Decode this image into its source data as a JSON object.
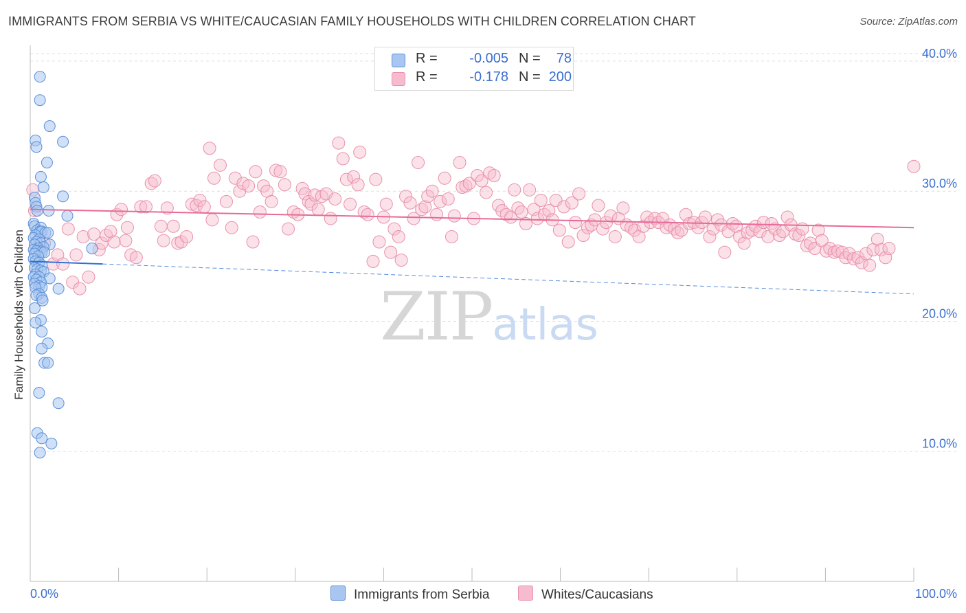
{
  "title": "IMMIGRANTS FROM SERBIA VS WHITE/CAUCASIAN FAMILY HOUSEHOLDS WITH CHILDREN CORRELATION CHART",
  "source": "Source: ZipAtlas.com",
  "watermark": {
    "zip": "ZIP",
    "atlas": "atlas"
  },
  "colors": {
    "blue_fill": "#a8c6f0",
    "blue_stroke": "#5b8fd8",
    "blue_line": "#2e6fd6",
    "pink_fill": "#f6bccd",
    "pink_stroke": "#e890ad",
    "pink_line": "#e66b98",
    "accent_text": "#3a6fd0",
    "grid": "#dddddd"
  },
  "legend_top": {
    "rows": [
      {
        "r_label": "R =",
        "r_value": "-0.005",
        "n_label": "N =",
        "n_value": "78"
      },
      {
        "r_label": "R =",
        "r_value": "-0.178",
        "n_label": "N =",
        "n_value": "200"
      }
    ]
  },
  "legend_bottom": {
    "series1": "Immigrants from Serbia",
    "series2": "Whites/Caucasians"
  },
  "chart_data": {
    "type": "scatter",
    "title": "IMMIGRANTS FROM SERBIA VS WHITE/CAUCASIAN FAMILY HOUSEHOLDS WITH CHILDREN CORRELATION CHART",
    "xlabel": "",
    "ylabel": "Family Households with Children",
    "xlim": [
      0,
      100
    ],
    "ylim": [
      0,
      41
    ],
    "x_tick_labels": [
      "0.0%",
      "100.0%"
    ],
    "y_ticks": [
      10,
      20,
      30,
      40
    ],
    "y_tick_labels": [
      "10.0%",
      "20.0%",
      "30.0%",
      "40.0%"
    ],
    "grid": true,
    "legend_position": "bottom-center",
    "series": [
      {
        "name": "Immigrants from Serbia",
        "R": -0.005,
        "N": 78,
        "trend": {
          "x": [
            0,
            8.2
          ],
          "y": [
            24.6,
            24.4
          ],
          "dashed_extension": {
            "x": [
              8.2,
              100
            ],
            "y": [
              24.4,
              22.1
            ]
          }
        },
        "points": [
          [
            1.1,
            38.8
          ],
          [
            1.1,
            37.0
          ],
          [
            2.2,
            35.0
          ],
          [
            0.6,
            33.9
          ],
          [
            3.7,
            33.8
          ],
          [
            0.7,
            33.4
          ],
          [
            1.9,
            32.2
          ],
          [
            1.2,
            31.1
          ],
          [
            1.5,
            30.3
          ],
          [
            3.7,
            29.6
          ],
          [
            0.5,
            29.5
          ],
          [
            0.6,
            29.1
          ],
          [
            0.7,
            28.8
          ],
          [
            0.8,
            28.5
          ],
          [
            2.1,
            28.5
          ],
          [
            4.2,
            28.1
          ],
          [
            0.4,
            27.5
          ],
          [
            0.5,
            27.3
          ],
          [
            1.2,
            27.2
          ],
          [
            0.8,
            27.0
          ],
          [
            1.1,
            26.9
          ],
          [
            1.3,
            26.9
          ],
          [
            1.7,
            26.8
          ],
          [
            2.0,
            26.8
          ],
          [
            0.6,
            26.6
          ],
          [
            0.4,
            26.4
          ],
          [
            1.0,
            26.3
          ],
          [
            0.7,
            26.1
          ],
          [
            1.2,
            26.0
          ],
          [
            0.5,
            25.9
          ],
          [
            2.2,
            25.9
          ],
          [
            1.5,
            25.7
          ],
          [
            0.9,
            25.6
          ],
          [
            0.4,
            25.5
          ],
          [
            7.0,
            25.6
          ],
          [
            1.1,
            25.4
          ],
          [
            0.7,
            25.4
          ],
          [
            1.3,
            25.3
          ],
          [
            1.6,
            25.3
          ],
          [
            0.5,
            25.2
          ],
          [
            0.9,
            25.0
          ],
          [
            0.4,
            24.8
          ],
          [
            0.6,
            24.6
          ],
          [
            1.0,
            24.5
          ],
          [
            1.3,
            24.3
          ],
          [
            0.5,
            24.1
          ],
          [
            0.8,
            24.0
          ],
          [
            1.2,
            23.9
          ],
          [
            1.5,
            23.8
          ],
          [
            0.6,
            23.6
          ],
          [
            0.4,
            23.4
          ],
          [
            1.0,
            23.4
          ],
          [
            2.2,
            23.3
          ],
          [
            0.7,
            23.2
          ],
          [
            1.2,
            23.0
          ],
          [
            0.5,
            22.9
          ],
          [
            1.0,
            22.7
          ],
          [
            1.3,
            22.6
          ],
          [
            0.6,
            22.6
          ],
          [
            3.2,
            22.5
          ],
          [
            1.0,
            22.1
          ],
          [
            0.7,
            22.0
          ],
          [
            1.3,
            21.8
          ],
          [
            1.4,
            21.6
          ],
          [
            0.5,
            21.0
          ],
          [
            1.2,
            20.1
          ],
          [
            0.6,
            19.9
          ],
          [
            1.3,
            19.2
          ],
          [
            2.0,
            18.3
          ],
          [
            1.3,
            17.9
          ],
          [
            1.6,
            16.8
          ],
          [
            2.0,
            16.8
          ],
          [
            1.0,
            14.5
          ],
          [
            3.2,
            13.7
          ],
          [
            0.8,
            11.4
          ],
          [
            1.3,
            11.0
          ],
          [
            2.4,
            10.6
          ],
          [
            1.1,
            9.9
          ]
        ]
      },
      {
        "name": "Whites/Caucasians",
        "R": -0.178,
        "N": 200,
        "trend": {
          "x": [
            0,
            100
          ],
          "y": [
            28.6,
            27.2
          ]
        },
        "points": [
          [
            0.3,
            30.1
          ],
          [
            0.5,
            28.5
          ],
          [
            1.2,
            26.8
          ],
          [
            1.6,
            26.0
          ],
          [
            2.6,
            24.4
          ],
          [
            3.1,
            25.1
          ],
          [
            3.7,
            24.4
          ],
          [
            4.3,
            27.1
          ],
          [
            4.8,
            23.0
          ],
          [
            5.2,
            25.1
          ],
          [
            5.6,
            22.5
          ],
          [
            6.0,
            26.5
          ],
          [
            6.6,
            23.4
          ],
          [
            7.2,
            26.7
          ],
          [
            7.8,
            25.5
          ],
          [
            8.1,
            26.0
          ],
          [
            8.6,
            26.6
          ],
          [
            9.1,
            26.9
          ],
          [
            9.5,
            26.1
          ],
          [
            9.8,
            28.2
          ],
          [
            10.3,
            28.6
          ],
          [
            10.8,
            26.2
          ],
          [
            11.0,
            27.2
          ],
          [
            11.4,
            25.1
          ],
          [
            12.0,
            24.9
          ],
          [
            12.5,
            28.8
          ],
          [
            13.1,
            28.8
          ],
          [
            13.7,
            30.6
          ],
          [
            14.1,
            30.8
          ],
          [
            14.8,
            27.3
          ],
          [
            15.1,
            26.2
          ],
          [
            15.5,
            28.7
          ],
          [
            16.2,
            27.3
          ],
          [
            16.7,
            26.0
          ],
          [
            17.1,
            26.1
          ],
          [
            17.7,
            26.5
          ],
          [
            18.3,
            29.0
          ],
          [
            18.8,
            28.9
          ],
          [
            19.2,
            29.3
          ],
          [
            19.7,
            28.8
          ],
          [
            20.6,
            27.8
          ],
          [
            20.3,
            33.3
          ],
          [
            20.8,
            31.0
          ],
          [
            21.5,
            32.0
          ],
          [
            22.2,
            29.2
          ],
          [
            22.8,
            27.2
          ],
          [
            23.2,
            31.0
          ],
          [
            23.7,
            30.0
          ],
          [
            24.1,
            30.6
          ],
          [
            24.7,
            30.4
          ],
          [
            25.2,
            26.1
          ],
          [
            25.5,
            31.5
          ],
          [
            26.0,
            28.4
          ],
          [
            26.4,
            30.4
          ],
          [
            26.8,
            30.0
          ],
          [
            27.3,
            29.2
          ],
          [
            27.8,
            31.6
          ],
          [
            28.3,
            31.5
          ],
          [
            28.8,
            30.5
          ],
          [
            29.2,
            27.1
          ],
          [
            29.8,
            28.4
          ],
          [
            30.3,
            28.2
          ],
          [
            30.8,
            30.2
          ],
          [
            31.1,
            29.8
          ],
          [
            31.5,
            29.2
          ],
          [
            31.8,
            29.0
          ],
          [
            32.2,
            29.7
          ],
          [
            32.6,
            28.6
          ],
          [
            33.0,
            29.6
          ],
          [
            33.5,
            29.8
          ],
          [
            34.0,
            27.9
          ],
          [
            34.5,
            29.4
          ],
          [
            34.9,
            33.7
          ],
          [
            35.4,
            32.5
          ],
          [
            35.8,
            30.9
          ],
          [
            36.2,
            29.0
          ],
          [
            36.6,
            31.1
          ],
          [
            37.1,
            30.5
          ],
          [
            37.3,
            33.0
          ],
          [
            37.8,
            28.4
          ],
          [
            38.2,
            28.2
          ],
          [
            38.8,
            24.6
          ],
          [
            39.1,
            30.9
          ],
          [
            39.5,
            26.1
          ],
          [
            40.0,
            28.0
          ],
          [
            40.3,
            29.0
          ],
          [
            40.8,
            25.3
          ],
          [
            41.2,
            27.1
          ],
          [
            41.7,
            26.5
          ],
          [
            42.0,
            24.7
          ],
          [
            42.5,
            29.6
          ],
          [
            43.0,
            29.1
          ],
          [
            43.4,
            27.9
          ],
          [
            43.9,
            32.2
          ],
          [
            44.3,
            28.6
          ],
          [
            44.7,
            28.8
          ],
          [
            45.0,
            29.6
          ],
          [
            45.5,
            30.0
          ],
          [
            46.0,
            28.2
          ],
          [
            46.4,
            29.2
          ],
          [
            46.9,
            31.0
          ],
          [
            47.3,
            29.4
          ],
          [
            47.7,
            26.5
          ],
          [
            48.0,
            28.1
          ],
          [
            48.6,
            32.2
          ],
          [
            48.9,
            30.3
          ],
          [
            49.3,
            30.4
          ],
          [
            49.7,
            30.6
          ],
          [
            50.2,
            27.9
          ],
          [
            50.6,
            31.2
          ],
          [
            51.1,
            30.8
          ],
          [
            51.6,
            29.9
          ],
          [
            52.0,
            31.4
          ],
          [
            52.5,
            31.2
          ],
          [
            53.0,
            28.9
          ],
          [
            53.4,
            28.5
          ],
          [
            53.9,
            28.2
          ],
          [
            54.4,
            28.0
          ],
          [
            54.8,
            30.1
          ],
          [
            55.2,
            28.7
          ],
          [
            55.6,
            28.4
          ],
          [
            56.1,
            27.5
          ],
          [
            56.5,
            30.1
          ],
          [
            57.0,
            28.6
          ],
          [
            57.4,
            27.9
          ],
          [
            57.8,
            29.3
          ],
          [
            58.2,
            28.2
          ],
          [
            58.7,
            28.5
          ],
          [
            59.1,
            27.8
          ],
          [
            59.5,
            29.3
          ],
          [
            59.9,
            27.0
          ],
          [
            60.4,
            28.8
          ],
          [
            60.9,
            26.1
          ],
          [
            61.3,
            29.1
          ],
          [
            61.7,
            27.6
          ],
          [
            62.1,
            29.8
          ],
          [
            62.6,
            26.6
          ],
          [
            63.1,
            27.2
          ],
          [
            63.5,
            27.4
          ],
          [
            63.9,
            27.8
          ],
          [
            64.3,
            28.9
          ],
          [
            64.8,
            27.1
          ],
          [
            65.2,
            27.6
          ],
          [
            65.7,
            28.1
          ],
          [
            66.2,
            26.5
          ],
          [
            66.6,
            27.9
          ],
          [
            67.1,
            28.7
          ],
          [
            67.5,
            27.4
          ],
          [
            68.0,
            27.2
          ],
          [
            68.4,
            27.0
          ],
          [
            68.9,
            26.5
          ],
          [
            69.4,
            27.3
          ],
          [
            69.8,
            28.0
          ],
          [
            70.2,
            27.6
          ],
          [
            70.7,
            27.9
          ],
          [
            71.1,
            27.6
          ],
          [
            71.6,
            27.9
          ],
          [
            72.0,
            27.2
          ],
          [
            72.4,
            27.4
          ],
          [
            72.9,
            27.1
          ],
          [
            73.3,
            26.8
          ],
          [
            73.7,
            27.0
          ],
          [
            74.2,
            28.2
          ],
          [
            74.6,
            27.5
          ],
          [
            75.1,
            27.6
          ],
          [
            75.6,
            27.2
          ],
          [
            76.0,
            27.6
          ],
          [
            76.4,
            28.0
          ],
          [
            76.9,
            26.5
          ],
          [
            77.3,
            27.1
          ],
          [
            77.8,
            27.8
          ],
          [
            78.2,
            27.4
          ],
          [
            78.6,
            25.3
          ],
          [
            79.0,
            26.9
          ],
          [
            79.5,
            27.5
          ],
          [
            79.9,
            27.3
          ],
          [
            80.3,
            26.5
          ],
          [
            80.8,
            26.0
          ],
          [
            81.2,
            26.8
          ],
          [
            81.7,
            27.0
          ],
          [
            82.1,
            27.3
          ],
          [
            82.6,
            26.9
          ],
          [
            83.0,
            27.6
          ],
          [
            83.5,
            26.5
          ],
          [
            83.9,
            27.5
          ],
          [
            84.3,
            27.1
          ],
          [
            84.8,
            26.6
          ],
          [
            85.2,
            26.9
          ],
          [
            85.7,
            28.0
          ],
          [
            86.1,
            27.4
          ],
          [
            86.6,
            26.7
          ],
          [
            87.0,
            26.6
          ],
          [
            87.4,
            27.1
          ],
          [
            87.9,
            25.8
          ],
          [
            88.3,
            26.0
          ],
          [
            88.8,
            25.6
          ],
          [
            89.2,
            27.0
          ],
          [
            89.6,
            26.2
          ],
          [
            90.1,
            25.4
          ],
          [
            90.5,
            25.6
          ],
          [
            91.0,
            25.3
          ],
          [
            91.4,
            25.4
          ],
          [
            91.9,
            25.3
          ],
          [
            92.3,
            24.9
          ],
          [
            92.7,
            25.2
          ],
          [
            93.2,
            24.8
          ],
          [
            93.7,
            24.9
          ],
          [
            94.1,
            24.5
          ],
          [
            94.6,
            25.2
          ],
          [
            95.0,
            24.3
          ],
          [
            95.4,
            25.5
          ],
          [
            95.9,
            26.3
          ],
          [
            96.3,
            25.5
          ],
          [
            96.8,
            24.9
          ],
          [
            97.2,
            25.6
          ],
          [
            100.0,
            31.9
          ]
        ]
      }
    ]
  }
}
